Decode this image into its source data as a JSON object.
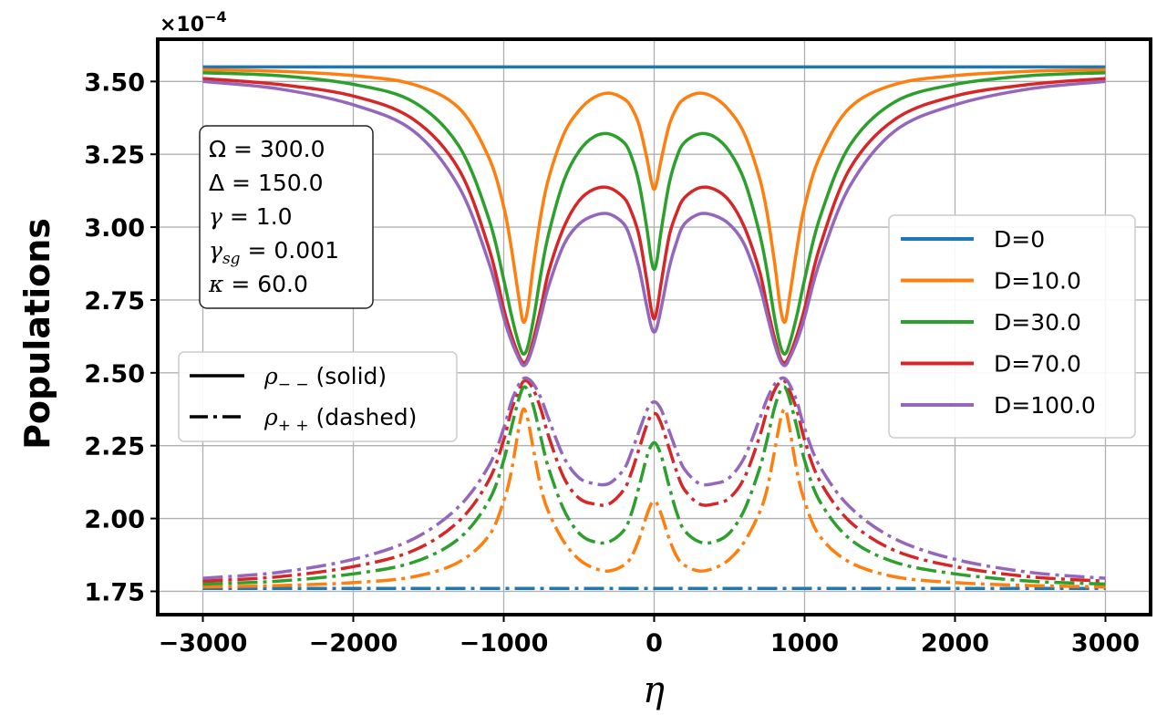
{
  "chart_data": {
    "type": "line",
    "title": "",
    "xlabel": "η",
    "ylabel": "Populations",
    "y_multiplier": "×10",
    "y_multiplier_exp": "−4",
    "xlim": [
      -3300,
      3300
    ],
    "ylim": [
      1.67,
      3.645
    ],
    "grid": true,
    "x_ticks": [
      -3000,
      -2000,
      -1000,
      0,
      1000,
      2000,
      3000
    ],
    "x_tick_labels": [
      "−3000",
      "−2000",
      "−1000",
      "0",
      "1000",
      "2000",
      "3000"
    ],
    "y_ticks": [
      1.75,
      2.0,
      2.25,
      2.5,
      2.75,
      3.0,
      3.25,
      3.5
    ],
    "y_tick_labels": [
      "1.75",
      "2.00",
      "2.25",
      "2.50",
      "2.75",
      "3.00",
      "3.25",
      "3.50"
    ],
    "parameters": [
      {
        "symbol": "Ω",
        "sub": "",
        "value": "= 300.0"
      },
      {
        "symbol": "Δ",
        "sub": "",
        "value": "= 150.0"
      },
      {
        "symbol": "γ",
        "sub": "",
        "value": "= 1.0"
      },
      {
        "symbol": "γ",
        "sub": "sg",
        "value": "= 0.001"
      },
      {
        "symbol": "κ",
        "sub": "",
        "value": "= 60.0"
      }
    ],
    "style_legend": [
      {
        "symbol": "ρ",
        "sub": "− −",
        "text": " (solid)",
        "style": "solid"
      },
      {
        "symbol": "ρ",
        "sub": "+ +",
        "text": " (dashed)",
        "style": "dashdot"
      }
    ],
    "series": [
      {
        "name": "D=0",
        "color": "#1f77b4",
        "rho_mm": {
          "x": [
            -3000,
            -2000,
            -1000,
            0,
            1000,
            2000,
            3000
          ],
          "y": [
            3.55,
            3.55,
            3.55,
            3.55,
            3.55,
            3.55,
            3.55
          ]
        },
        "rho_pp": {
          "x": [
            -3000,
            -2000,
            -1000,
            0,
            1000,
            2000,
            3000
          ],
          "y": [
            1.76,
            1.76,
            1.76,
            1.76,
            1.76,
            1.76,
            1.76
          ]
        }
      },
      {
        "name": "D=10.0",
        "color": "#ff7f0e",
        "rho_mm": {
          "x": [
            -3000,
            -2500,
            -2000,
            -1600,
            -1300,
            -1100,
            -1000,
            -950,
            -900,
            -870,
            -840,
            -800,
            -750,
            -700,
            -600,
            -500,
            -400,
            -300,
            -200,
            -150,
            -100,
            -50,
            -20,
            0,
            20,
            50,
            100,
            150,
            200,
            300,
            400,
            500,
            600,
            700,
            750,
            800,
            840,
            870,
            900,
            950,
            1000,
            1100,
            1300,
            1600,
            2000,
            2500,
            3000
          ],
          "y": [
            3.54,
            3.535,
            3.52,
            3.49,
            3.41,
            3.24,
            3.07,
            2.93,
            2.76,
            2.675,
            2.72,
            2.88,
            3.05,
            3.17,
            3.32,
            3.4,
            3.445,
            3.46,
            3.44,
            3.41,
            3.35,
            3.24,
            3.16,
            3.13,
            3.16,
            3.24,
            3.35,
            3.41,
            3.44,
            3.46,
            3.445,
            3.4,
            3.32,
            3.17,
            3.05,
            2.88,
            2.72,
            2.675,
            2.76,
            2.93,
            3.07,
            3.24,
            3.41,
            3.49,
            3.52,
            3.535,
            3.54
          ]
        },
        "rho_pp": {
          "x": [
            -3000,
            -2500,
            -2000,
            -1600,
            -1300,
            -1100,
            -1000,
            -950,
            -900,
            -870,
            -840,
            -800,
            -750,
            -700,
            -600,
            -500,
            -400,
            -300,
            -200,
            -150,
            -100,
            -50,
            -20,
            0,
            20,
            50,
            100,
            150,
            200,
            300,
            400,
            500,
            600,
            700,
            750,
            800,
            840,
            870,
            900,
            950,
            1000,
            1100,
            1300,
            1600,
            2000,
            2500,
            3000
          ],
          "y": [
            1.765,
            1.77,
            1.78,
            1.8,
            1.85,
            1.94,
            2.06,
            2.16,
            2.31,
            2.375,
            2.34,
            2.23,
            2.1,
            2.02,
            1.92,
            1.86,
            1.83,
            1.82,
            1.84,
            1.87,
            1.93,
            2.01,
            2.05,
            2.06,
            2.05,
            2.01,
            1.93,
            1.87,
            1.84,
            1.82,
            1.83,
            1.86,
            1.92,
            2.02,
            2.1,
            2.23,
            2.34,
            2.375,
            2.31,
            2.16,
            2.06,
            1.94,
            1.85,
            1.8,
            1.78,
            1.77,
            1.765
          ]
        }
      },
      {
        "name": "D=30.0",
        "color": "#2ca02c",
        "rho_mm": {
          "x": [
            -3000,
            -2500,
            -2000,
            -1600,
            -1300,
            -1100,
            -1000,
            -950,
            -900,
            -870,
            -840,
            -800,
            -750,
            -700,
            -600,
            -500,
            -400,
            -300,
            -200,
            -150,
            -100,
            -50,
            -20,
            0,
            20,
            50,
            100,
            150,
            200,
            300,
            400,
            500,
            600,
            700,
            750,
            800,
            840,
            870,
            900,
            950,
            1000,
            1100,
            1300,
            1600,
            2000,
            2500,
            3000
          ],
          "y": [
            3.53,
            3.52,
            3.49,
            3.43,
            3.28,
            3.03,
            2.82,
            2.7,
            2.6,
            2.565,
            2.59,
            2.69,
            2.85,
            2.98,
            3.16,
            3.26,
            3.31,
            3.32,
            3.29,
            3.24,
            3.15,
            3.0,
            2.89,
            2.855,
            2.89,
            3.0,
            3.15,
            3.24,
            3.29,
            3.32,
            3.31,
            3.26,
            3.16,
            2.98,
            2.85,
            2.69,
            2.59,
            2.565,
            2.6,
            2.7,
            2.82,
            3.03,
            3.28,
            3.43,
            3.49,
            3.52,
            3.53
          ]
        },
        "rho_pp": {
          "x": [
            -3000,
            -2500,
            -2000,
            -1600,
            -1300,
            -1100,
            -1000,
            -950,
            -900,
            -870,
            -840,
            -800,
            -750,
            -700,
            -600,
            -500,
            -400,
            -300,
            -200,
            -150,
            -100,
            -50,
            -20,
            0,
            20,
            50,
            100,
            150,
            200,
            300,
            400,
            500,
            600,
            700,
            750,
            800,
            840,
            870,
            900,
            950,
            1000,
            1100,
            1300,
            1600,
            2000,
            2500,
            3000
          ],
          "y": [
            1.775,
            1.785,
            1.81,
            1.85,
            1.93,
            2.06,
            2.2,
            2.31,
            2.41,
            2.45,
            2.44,
            2.38,
            2.27,
            2.17,
            2.03,
            1.95,
            1.92,
            1.92,
            1.96,
            2.02,
            2.11,
            2.21,
            2.25,
            2.26,
            2.25,
            2.21,
            2.11,
            2.02,
            1.96,
            1.92,
            1.92,
            1.95,
            2.03,
            2.17,
            2.27,
            2.38,
            2.44,
            2.45,
            2.41,
            2.31,
            2.2,
            2.06,
            1.93,
            1.85,
            1.81,
            1.785,
            1.775
          ]
        }
      },
      {
        "name": "D=70.0",
        "color": "#d62728",
        "rho_mm": {
          "x": [
            -3000,
            -2500,
            -2000,
            -1600,
            -1300,
            -1100,
            -1000,
            -950,
            -900,
            -870,
            -840,
            -800,
            -750,
            -700,
            -600,
            -500,
            -400,
            -300,
            -200,
            -150,
            -100,
            -50,
            -20,
            0,
            20,
            50,
            100,
            150,
            200,
            300,
            400,
            500,
            600,
            700,
            750,
            800,
            840,
            870,
            900,
            950,
            1000,
            1100,
            1300,
            1600,
            2000,
            2500,
            3000
          ],
          "y": [
            3.51,
            3.49,
            3.45,
            3.37,
            3.2,
            2.93,
            2.72,
            2.63,
            2.56,
            2.535,
            2.55,
            2.62,
            2.73,
            2.85,
            3.0,
            3.09,
            3.13,
            3.135,
            3.1,
            3.05,
            2.97,
            2.82,
            2.72,
            2.685,
            2.72,
            2.82,
            2.97,
            3.05,
            3.1,
            3.135,
            3.13,
            3.09,
            3.0,
            2.85,
            2.73,
            2.62,
            2.55,
            2.535,
            2.56,
            2.63,
            2.72,
            2.93,
            3.2,
            3.37,
            3.45,
            3.49,
            3.51
          ]
        },
        "rho_pp": {
          "x": [
            -3000,
            -2500,
            -2000,
            -1600,
            -1300,
            -1100,
            -1000,
            -950,
            -900,
            -870,
            -840,
            -800,
            -750,
            -700,
            -600,
            -500,
            -400,
            -300,
            -200,
            -150,
            -100,
            -50,
            -20,
            0,
            20,
            50,
            100,
            150,
            200,
            300,
            400,
            500,
            600,
            700,
            750,
            800,
            840,
            870,
            900,
            950,
            1000,
            1100,
            1300,
            1600,
            2000,
            2500,
            3000
          ],
          "y": [
            1.785,
            1.8,
            1.835,
            1.89,
            1.99,
            2.13,
            2.27,
            2.37,
            2.44,
            2.47,
            2.47,
            2.44,
            2.37,
            2.28,
            2.14,
            2.07,
            2.05,
            2.05,
            2.1,
            2.16,
            2.24,
            2.32,
            2.355,
            2.36,
            2.355,
            2.32,
            2.24,
            2.16,
            2.1,
            2.05,
            2.05,
            2.07,
            2.14,
            2.28,
            2.37,
            2.44,
            2.47,
            2.47,
            2.44,
            2.37,
            2.27,
            2.13,
            1.99,
            1.89,
            1.835,
            1.8,
            1.785
          ]
        }
      },
      {
        "name": "D=100.0",
        "color": "#9467bd",
        "rho_mm": {
          "x": [
            -3000,
            -2500,
            -2000,
            -1600,
            -1300,
            -1100,
            -1000,
            -950,
            -900,
            -870,
            -840,
            -800,
            -750,
            -700,
            -600,
            -500,
            -400,
            -300,
            -200,
            -150,
            -100,
            -50,
            -20,
            0,
            20,
            50,
            100,
            150,
            200,
            300,
            400,
            500,
            600,
            700,
            750,
            800,
            840,
            870,
            900,
            950,
            1000,
            1100,
            1300,
            1600,
            2000,
            2500,
            3000
          ],
          "y": [
            3.5,
            3.475,
            3.42,
            3.33,
            3.14,
            2.88,
            2.69,
            2.61,
            2.55,
            2.525,
            2.54,
            2.6,
            2.7,
            2.8,
            2.94,
            3.01,
            3.04,
            3.045,
            3.01,
            2.95,
            2.86,
            2.73,
            2.66,
            2.64,
            2.66,
            2.73,
            2.86,
            2.95,
            3.01,
            3.045,
            3.04,
            3.01,
            2.94,
            2.8,
            2.7,
            2.6,
            2.54,
            2.525,
            2.55,
            2.61,
            2.69,
            2.88,
            3.14,
            3.33,
            3.42,
            3.475,
            3.5
          ]
        },
        "rho_pp": {
          "x": [
            -3000,
            -2500,
            -2000,
            -1600,
            -1300,
            -1100,
            -1000,
            -950,
            -900,
            -870,
            -840,
            -800,
            -750,
            -700,
            -600,
            -500,
            -400,
            -300,
            -200,
            -150,
            -100,
            -50,
            -20,
            0,
            20,
            50,
            100,
            150,
            200,
            300,
            400,
            500,
            600,
            700,
            750,
            800,
            840,
            870,
            900,
            950,
            1000,
            1100,
            1300,
            1600,
            2000,
            2500,
            3000
          ],
          "y": [
            1.795,
            1.815,
            1.86,
            1.93,
            2.04,
            2.18,
            2.31,
            2.4,
            2.46,
            2.48,
            2.48,
            2.46,
            2.41,
            2.34,
            2.21,
            2.14,
            2.12,
            2.12,
            2.17,
            2.23,
            2.3,
            2.37,
            2.395,
            2.4,
            2.395,
            2.37,
            2.3,
            2.23,
            2.17,
            2.12,
            2.12,
            2.14,
            2.21,
            2.34,
            2.41,
            2.46,
            2.48,
            2.48,
            2.46,
            2.4,
            2.31,
            2.18,
            2.04,
            1.93,
            1.86,
            1.815,
            1.795
          ]
        }
      }
    ]
  }
}
